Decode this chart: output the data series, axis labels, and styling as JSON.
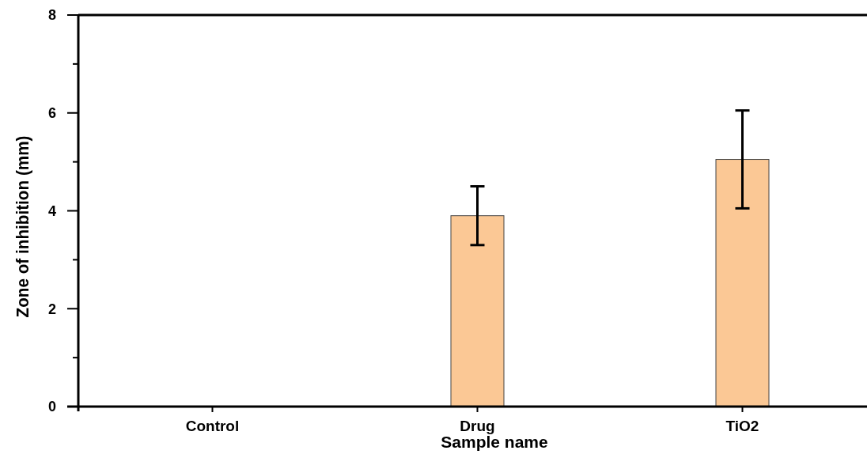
{
  "chart_data": {
    "type": "bar",
    "xlabel": "Sample name",
    "ylabel": "Zone of inhibition (mm)",
    "categories": [
      "Control",
      "Drug",
      "TiO2"
    ],
    "values": [
      0,
      3.9,
      5.05
    ],
    "errors": [
      null,
      0.6,
      1.0
    ],
    "color": "#fbc895",
    "ylim": [
      0,
      8
    ],
    "yticks": [
      0,
      {
        "value": 1,
        "label": null
      },
      2,
      {
        "value": 3,
        "label": null
      },
      4,
      {
        "value": 5,
        "label": null
      },
      6,
      {
        "value": 7,
        "label": null
      },
      8
    ],
    "grid": false
  }
}
